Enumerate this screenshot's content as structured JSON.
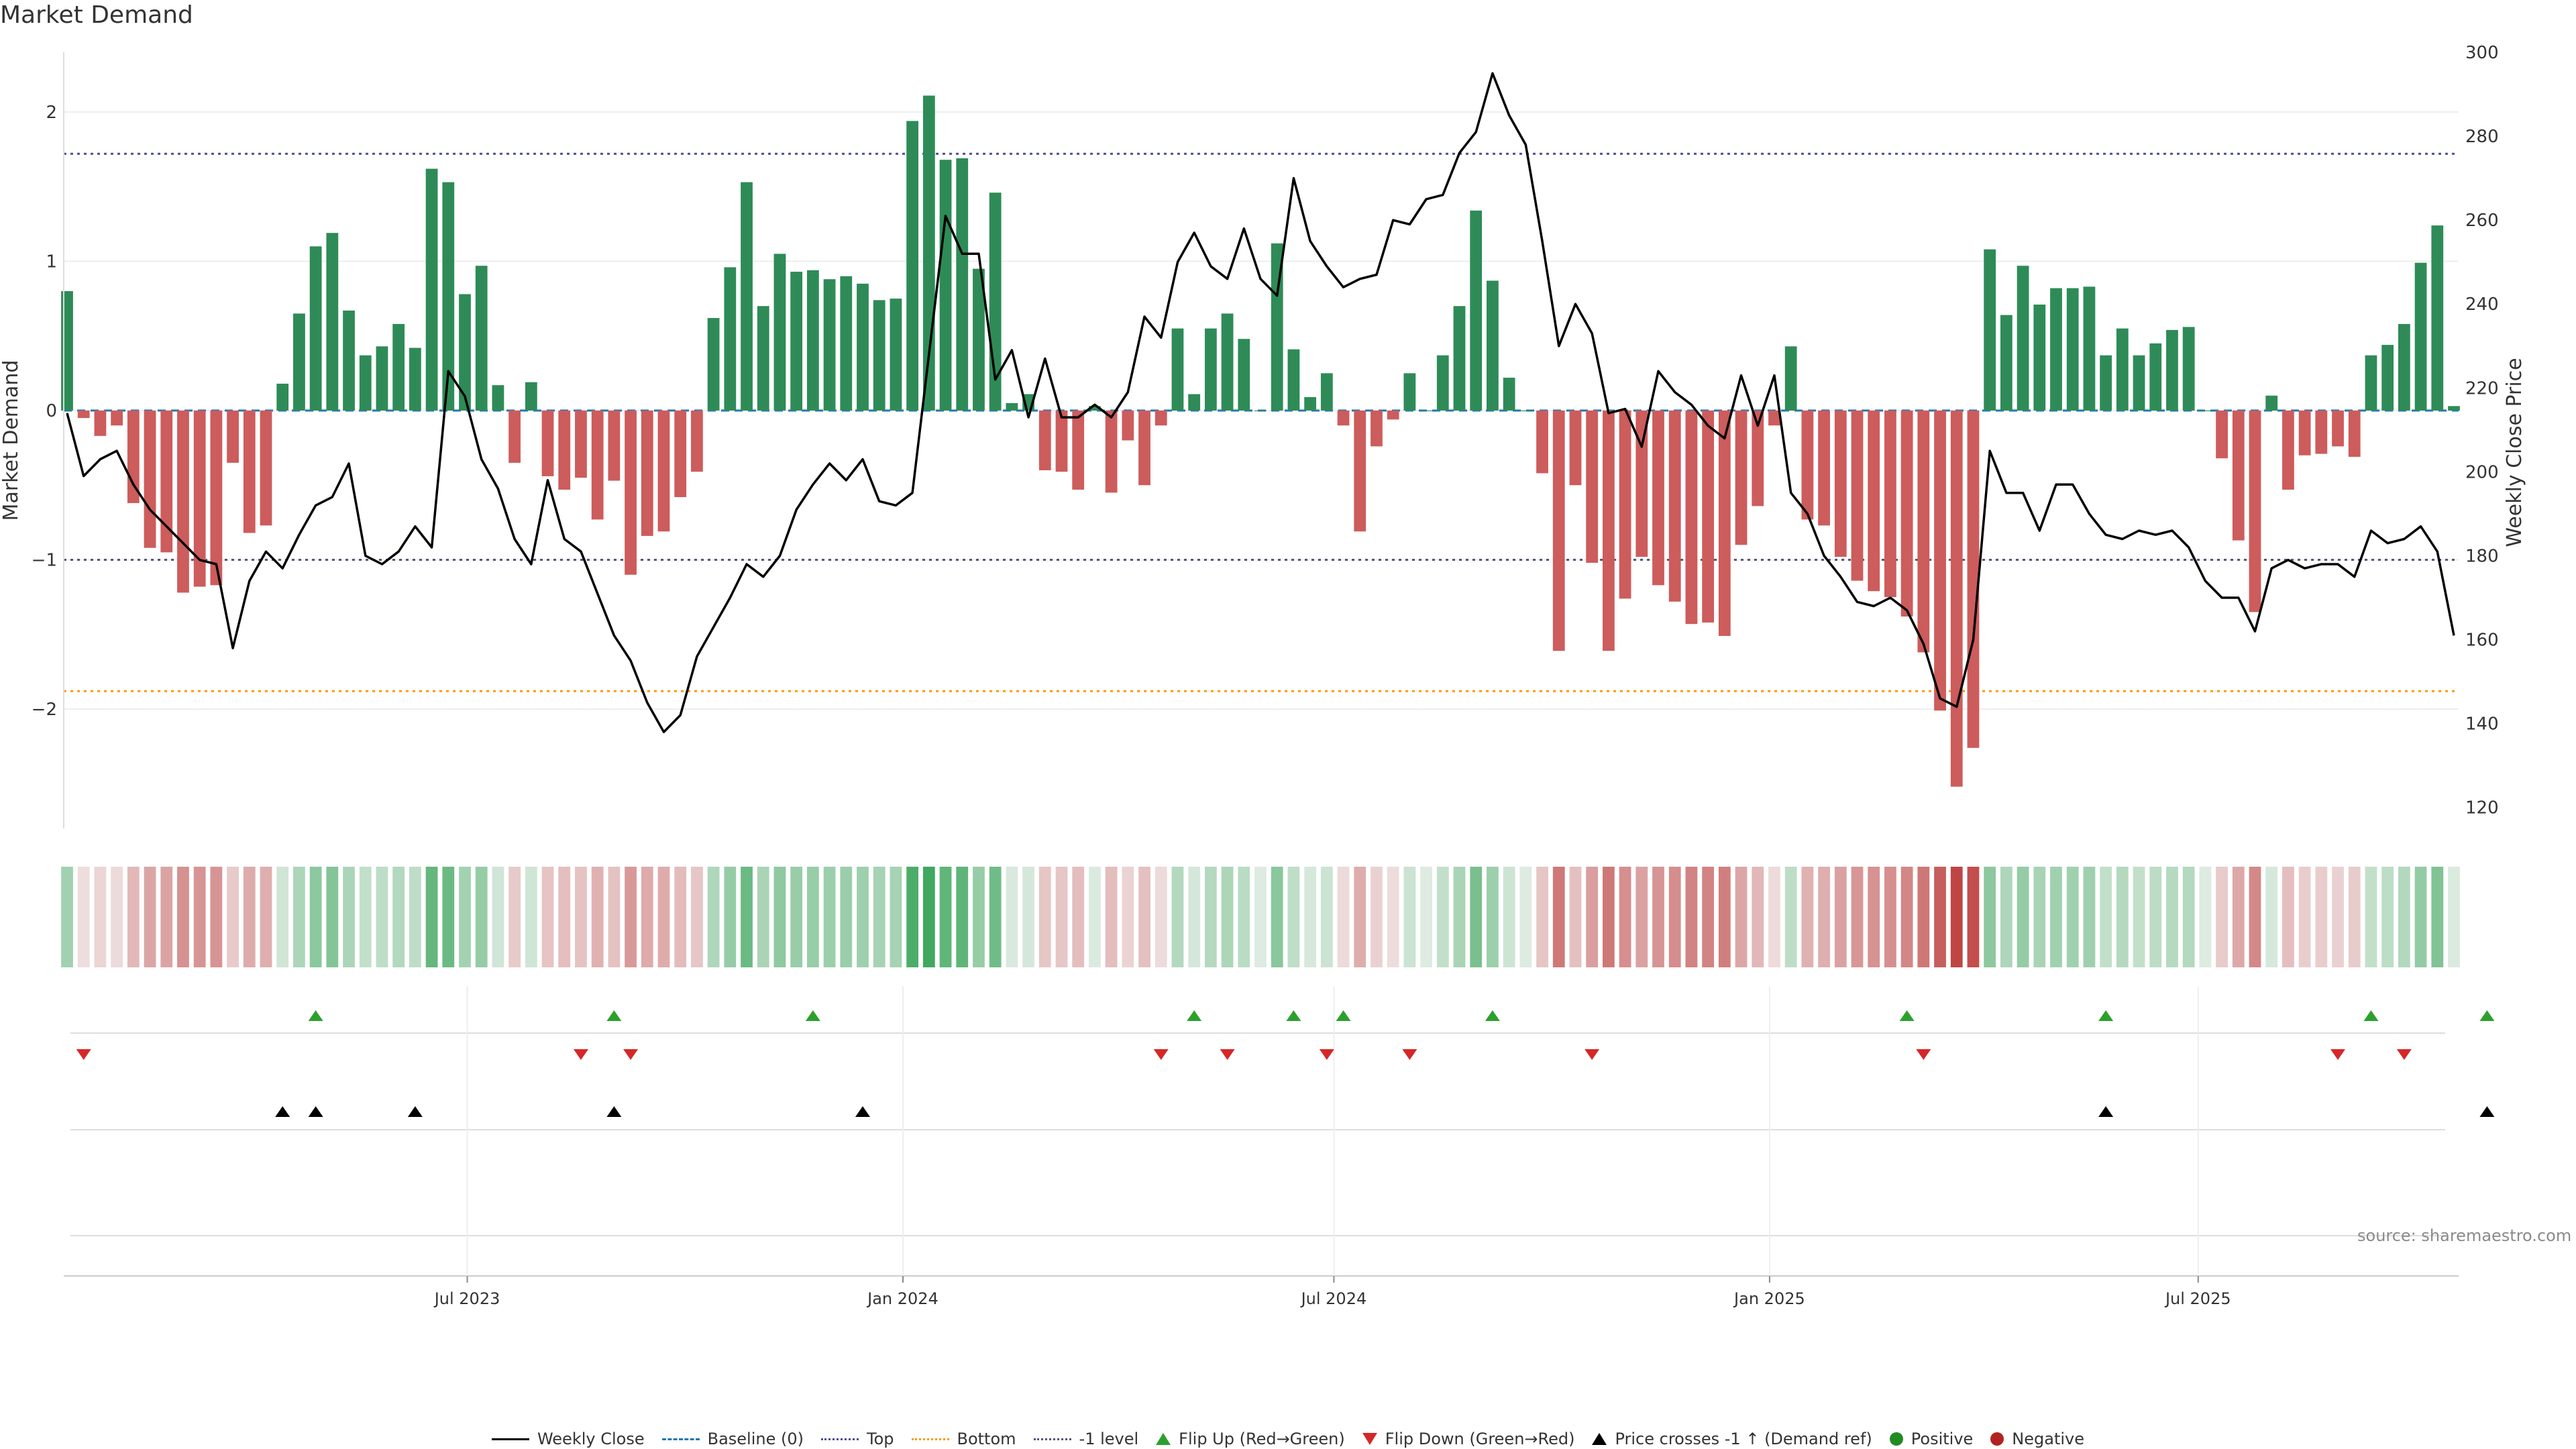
{
  "title": "Market Demand",
  "source": "source: sharemaestro.com",
  "colors": {
    "positive": "#2e8b57",
    "negative": "#cd5c5c",
    "price": "#000000",
    "baseline": "#1f77b4",
    "top": "#4b4b9b",
    "bottom": "#ff9900",
    "minus1": "#555577",
    "flip_up": "#2ca02c",
    "flip_down": "#d62728",
    "cross": "#000000",
    "dot_positive": "#228b22",
    "dot_negative": "#b22222"
  },
  "legend": [
    {
      "label": "Weekly Close",
      "kind": "line",
      "color": "#000000"
    },
    {
      "label": "Baseline (0)",
      "kind": "dash",
      "color": "#1f77b4"
    },
    {
      "label": "Top",
      "kind": "dot",
      "color": "#4b4b9b"
    },
    {
      "label": "Bottom",
      "kind": "dot",
      "color": "#ff9900"
    },
    {
      "label": "-1 level",
      "kind": "dot",
      "color": "#555577"
    },
    {
      "label": "Flip Up (Red→Green)",
      "kind": "up",
      "color": "#2ca02c"
    },
    {
      "label": "Flip Down (Green→Red)",
      "kind": "down",
      "color": "#d62728"
    },
    {
      "label": "Price crosses -1 ↑ (Demand ref)",
      "kind": "up",
      "color": "#000000"
    },
    {
      "label": "Positive",
      "kind": "circle",
      "color": "#228b22"
    },
    {
      "label": "Negative",
      "kind": "circle",
      "color": "#b22222"
    }
  ],
  "chart_data": {
    "type": "bar+line",
    "start_date": "2023-01-13",
    "interval_days": 7,
    "xticks": [
      {
        "label": "Jul 2023",
        "date": "2023-07-01"
      },
      {
        "label": "Jan 2024",
        "date": "2024-01-01"
      },
      {
        "label": "Jul 2024",
        "date": "2024-07-01"
      },
      {
        "label": "Jan 2025",
        "date": "2025-01-01"
      },
      {
        "label": "Jul 2025",
        "date": "2025-07-01"
      }
    ],
    "left_axis": {
      "label": "Market Demand",
      "ylim": [
        -2.8,
        2.4
      ],
      "ticks": [
        2,
        1,
        0,
        -1,
        -2
      ],
      "tick_labels": [
        "2",
        "1",
        "0",
        "−1",
        "−2"
      ]
    },
    "right_axis": {
      "label": "Weekly Close Price",
      "ylim": [
        115,
        300
      ],
      "ticks": [
        300,
        280,
        260,
        240,
        220,
        200,
        180,
        160,
        140,
        120
      ]
    },
    "reference_lines": {
      "baseline": 0,
      "top": 1.72,
      "bottom": -1.88,
      "minus1": -1.0
    },
    "demand": [
      0.8,
      -0.05,
      -0.17,
      -0.1,
      -0.62,
      -0.92,
      -0.95,
      -1.22,
      -1.18,
      -1.17,
      -0.35,
      -0.82,
      -0.77,
      0.18,
      0.65,
      1.1,
      1.19,
      0.67,
      0.37,
      0.43,
      0.58,
      0.42,
      1.62,
      1.53,
      0.78,
      0.97,
      0.17,
      -0.35,
      0.19,
      -0.44,
      -0.53,
      -0.45,
      -0.73,
      -0.47,
      -1.1,
      -0.84,
      -0.81,
      -0.58,
      -0.41,
      0.62,
      0.96,
      1.53,
      0.7,
      1.05,
      0.93,
      0.94,
      0.88,
      0.9,
      0.85,
      0.74,
      0.75,
      1.94,
      2.11,
      1.68,
      1.69,
      0.95,
      1.46,
      0.05,
      0.11,
      -0.4,
      -0.41,
      -0.53,
      0.03,
      -0.55,
      -0.2,
      -0.5,
      -0.1,
      0.55,
      0.11,
      0.55,
      0.65,
      0.48,
      0.0,
      1.12,
      0.41,
      0.09,
      0.25,
      -0.1,
      -0.81,
      -0.24,
      -0.06,
      0.25,
      0.0,
      0.37,
      0.7,
      1.34,
      0.87,
      0.22,
      0.0,
      -0.42,
      -1.61,
      -0.5,
      -1.02,
      -1.61,
      -1.26,
      -0.98,
      -1.17,
      -1.28,
      -1.43,
      -1.42,
      -1.51,
      -0.9,
      -0.64,
      -0.1,
      0.43,
      -0.73,
      -0.77,
      -0.98,
      -1.14,
      -1.21,
      -1.25,
      -1.38,
      -1.62,
      -2.01,
      -2.52,
      -2.26,
      1.08,
      0.64,
      0.97,
      0.71,
      0.82,
      0.82,
      0.83,
      0.37,
      0.55,
      0.37,
      0.45,
      0.54,
      0.56,
      0.0,
      -0.32,
      -0.87,
      -1.35,
      0.1,
      -0.53,
      -0.3,
      -0.29,
      -0.24,
      -0.31,
      0.37,
      0.44,
      0.58,
      0.99,
      1.24,
      0.03
    ],
    "price": [
      214,
      199,
      203,
      205,
      197,
      191,
      187,
      183,
      179,
      178,
      158,
      174,
      181,
      177,
      185,
      192,
      194,
      202,
      180,
      178,
      181,
      187,
      182,
      224,
      218,
      203,
      196,
      184,
      178,
      198,
      184,
      181,
      171,
      161,
      155,
      145,
      138,
      142,
      156,
      163,
      170,
      178,
      175,
      180,
      191,
      197,
      202,
      198,
      203,
      193,
      192,
      195,
      228,
      261,
      252,
      252,
      222,
      229,
      213,
      227,
      213,
      213,
      216,
      213,
      219,
      237,
      232,
      250,
      257,
      249,
      246,
      258,
      246,
      242,
      270,
      255,
      249,
      244,
      246,
      247,
      260,
      259,
      265,
      266,
      276,
      281,
      295,
      285,
      278,
      255,
      230,
      240,
      233,
      214,
      215,
      206,
      224,
      219,
      216,
      211,
      208,
      223,
      211,
      223,
      195,
      190,
      180,
      175,
      169,
      168,
      170,
      167,
      159,
      146,
      144,
      160,
      205,
      195,
      195,
      186,
      197,
      197,
      190,
      185,
      184,
      186,
      185,
      186,
      182,
      174,
      170,
      170,
      162,
      177,
      179,
      177,
      178,
      178,
      175,
      186,
      183,
      184,
      187,
      181,
      161
    ],
    "flip_up_dates": [
      "2023-04-28",
      "2023-09-01",
      "2023-11-24",
      "2024-05-03",
      "2024-06-14",
      "2024-07-05",
      "2024-09-06",
      "2025-02-28",
      "2025-05-23",
      "2025-09-12",
      "2025-10-31"
    ],
    "flip_down_dates": [
      "2023-01-20",
      "2023-08-18",
      "2023-09-08",
      "2024-04-19",
      "2024-05-17",
      "2024-06-28",
      "2024-08-02",
      "2024-10-18",
      "2025-03-07",
      "2025-08-29",
      "2025-09-26"
    ],
    "price_cross_up_dates": [
      "2023-04-14",
      "2023-04-28",
      "2023-06-09",
      "2023-09-01",
      "2023-12-15",
      "2025-05-23",
      "2025-10-31"
    ],
    "strip_intensity_note": "heat strip color encodes demand value per week"
  }
}
